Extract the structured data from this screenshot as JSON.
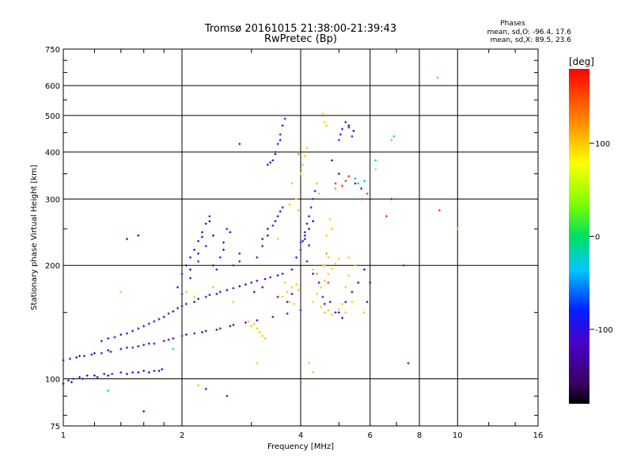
{
  "chart_data": {
    "type": "scatter",
    "title": "Tromsø 20161015 21:38:00-21:39:43",
    "subtitle": "RwPretec (Bp)",
    "xlabel": "Frequency [MHz]",
    "ylabel": "Stationary phase Virtual Height [km]",
    "x_scale": "log",
    "y_scale": "log",
    "xlim": [
      1,
      16
    ],
    "ylim": [
      75,
      750
    ],
    "x_ticks": [
      1,
      2,
      4,
      6,
      8,
      10,
      16
    ],
    "x_gridlines": [
      2,
      4,
      6,
      8,
      10
    ],
    "y_ticks": [
      75,
      100,
      200,
      300,
      400,
      500,
      600,
      750
    ],
    "y_gridlines": [
      100,
      200,
      300,
      400,
      500,
      600
    ],
    "grid": true,
    "phases_box": {
      "title": "Phases",
      "line_o": "mean, sd,O: -96.4, 17.6",
      "line_x": "mean, sd,X:  89.5, 23.6"
    },
    "colorbar": {
      "title": "[deg]",
      "range": [
        -180,
        180
      ],
      "ticks": [
        {
          "value": 100,
          "label": "100"
        },
        {
          "value": 0,
          "label": "0"
        },
        {
          "value": -100,
          "label": "-100"
        }
      ]
    },
    "series": [
      {
        "phase_deg": -100,
        "points": [
          [
            1.0,
            97
          ],
          [
            1.03,
            99
          ],
          [
            1.06,
            100
          ],
          [
            1.1,
            101
          ],
          [
            1.15,
            102
          ],
          [
            1.2,
            102
          ],
          [
            1.27,
            103
          ],
          [
            1.33,
            103
          ],
          [
            1.4,
            104
          ],
          [
            1.5,
            104
          ],
          [
            1.6,
            105
          ],
          [
            1.7,
            105
          ],
          [
            1.78,
            106
          ],
          [
            1.0,
            112
          ],
          [
            1.04,
            113
          ],
          [
            1.08,
            114
          ],
          [
            1.13,
            115
          ],
          [
            1.18,
            116
          ],
          [
            1.25,
            117
          ],
          [
            1.32,
            118
          ],
          [
            1.4,
            120
          ],
          [
            1.5,
            121
          ],
          [
            1.6,
            123
          ],
          [
            1.7,
            124
          ],
          [
            1.8,
            126
          ],
          [
            1.9,
            128
          ],
          [
            2.0,
            130
          ],
          [
            2.15,
            132
          ],
          [
            2.3,
            134
          ],
          [
            2.5,
            136
          ],
          [
            2.7,
            139
          ],
          [
            2.9,
            141
          ],
          [
            3.1,
            143
          ],
          [
            3.4,
            146
          ],
          [
            3.7,
            149
          ],
          [
            4.0,
            152
          ],
          [
            1.25,
            126
          ],
          [
            1.35,
            129
          ],
          [
            1.45,
            132
          ],
          [
            1.55,
            136
          ],
          [
            1.65,
            140
          ],
          [
            1.75,
            144
          ],
          [
            1.85,
            149
          ],
          [
            1.95,
            154
          ],
          [
            2.05,
            158
          ],
          [
            2.2,
            163
          ],
          [
            2.35,
            167
          ],
          [
            2.5,
            170
          ],
          [
            2.7,
            174
          ],
          [
            2.9,
            178
          ],
          [
            3.1,
            182
          ],
          [
            3.35,
            186
          ],
          [
            3.6,
            190
          ],
          [
            2.0,
            190
          ],
          [
            2.05,
            200
          ],
          [
            2.1,
            210
          ],
          [
            2.15,
            220
          ],
          [
            2.2,
            232
          ],
          [
            2.25,
            245
          ],
          [
            2.3,
            258
          ],
          [
            2.35,
            270
          ],
          [
            1.95,
            175
          ],
          [
            2.0,
            168
          ],
          [
            2.1,
            185
          ],
          [
            2.2,
            205
          ],
          [
            2.3,
            225
          ],
          [
            2.4,
            240
          ],
          [
            2.45,
            195
          ],
          [
            2.5,
            210
          ],
          [
            2.55,
            230
          ],
          [
            2.6,
            250
          ],
          [
            2.7,
            200
          ],
          [
            2.8,
            215
          ],
          [
            3.3,
            240
          ],
          [
            3.4,
            255
          ],
          [
            3.5,
            270
          ],
          [
            3.6,
            285
          ],
          [
            3.2,
            225
          ],
          [
            3.1,
            210
          ],
          [
            3.4,
            380
          ],
          [
            3.45,
            400
          ],
          [
            3.5,
            420
          ],
          [
            3.55,
            445
          ],
          [
            3.6,
            470
          ],
          [
            3.65,
            490
          ],
          [
            3.3,
            370
          ],
          [
            3.9,
            210
          ],
          [
            4.0,
            220
          ],
          [
            4.05,
            232
          ],
          [
            4.1,
            245
          ],
          [
            4.15,
            258
          ],
          [
            4.2,
            270
          ],
          [
            4.25,
            285
          ],
          [
            4.3,
            300
          ],
          [
            4.35,
            315
          ],
          [
            4.0,
            230
          ],
          [
            4.1,
            240
          ],
          [
            4.2,
            226
          ],
          [
            5.0,
            430
          ],
          [
            5.05,
            445
          ],
          [
            5.1,
            460
          ],
          [
            5.2,
            480
          ],
          [
            5.3,
            465
          ],
          [
            5.4,
            440
          ],
          [
            4.8,
            380
          ],
          [
            5.0,
            350
          ],
          [
            5.5,
            330
          ],
          [
            5.7,
            320
          ],
          [
            4.9,
            150
          ],
          [
            5.1,
            145
          ],
          [
            4.6,
            158
          ],
          [
            6.8,
            300
          ],
          [
            7.3,
            200
          ],
          [
            7.5,
            110
          ],
          [
            1.6,
            82
          ],
          [
            2.3,
            94
          ],
          [
            2.6,
            90
          ],
          [
            1.45,
            235
          ],
          [
            1.55,
            240
          ],
          [
            2.8,
            420
          ]
        ]
      },
      {
        "phase_deg": -140,
        "points": [
          [
            1.05,
            98
          ],
          [
            1.12,
            100
          ],
          [
            1.22,
            101
          ],
          [
            1.3,
            102
          ],
          [
            1.45,
            103
          ],
          [
            1.55,
            104
          ],
          [
            1.65,
            104
          ],
          [
            1.75,
            105
          ],
          [
            1.1,
            115
          ],
          [
            1.2,
            117
          ],
          [
            1.3,
            119
          ],
          [
            1.45,
            121
          ],
          [
            1.55,
            122
          ],
          [
            1.65,
            124
          ],
          [
            1.85,
            127
          ],
          [
            2.05,
            131
          ],
          [
            2.25,
            133
          ],
          [
            2.45,
            135
          ],
          [
            2.65,
            138
          ],
          [
            1.3,
            128
          ],
          [
            1.4,
            131
          ],
          [
            1.5,
            134
          ],
          [
            1.6,
            138
          ],
          [
            1.7,
            142
          ],
          [
            1.8,
            146
          ],
          [
            1.9,
            151
          ],
          [
            2.0,
            156
          ],
          [
            2.15,
            160
          ],
          [
            2.3,
            165
          ],
          [
            2.45,
            168
          ],
          [
            2.6,
            172
          ],
          [
            2.8,
            176
          ],
          [
            3.0,
            180
          ],
          [
            3.25,
            184
          ],
          [
            3.5,
            188
          ],
          [
            3.8,
            195
          ],
          [
            2.1,
            195
          ],
          [
            2.2,
            215
          ],
          [
            2.25,
            238
          ],
          [
            2.35,
            262
          ],
          [
            2.4,
            200
          ],
          [
            2.55,
            220
          ],
          [
            2.65,
            245
          ],
          [
            2.8,
            205
          ],
          [
            3.05,
            170
          ],
          [
            3.2,
            175
          ],
          [
            3.5,
            165
          ],
          [
            3.7,
            160
          ],
          [
            3.8,
            168
          ],
          [
            3.3,
            250
          ],
          [
            3.45,
            262
          ],
          [
            3.55,
            278
          ],
          [
            3.2,
            235
          ],
          [
            3.35,
            375
          ],
          [
            3.45,
            395
          ],
          [
            3.55,
            430
          ],
          [
            4.1,
            235
          ],
          [
            4.2,
            250
          ],
          [
            4.3,
            262
          ],
          [
            4.15,
            205
          ],
          [
            4.3,
            190
          ],
          [
            4.45,
            180
          ],
          [
            4.55,
            165
          ],
          [
            4.75,
            160
          ],
          [
            5.0,
            150
          ],
          [
            5.2,
            160
          ],
          [
            5.4,
            170
          ],
          [
            5.6,
            180
          ],
          [
            5.8,
            195
          ],
          [
            6.0,
            180
          ],
          [
            5.9,
            160
          ],
          [
            5.3,
            470
          ],
          [
            5.45,
            455
          ]
        ]
      },
      {
        "phase_deg": 100,
        "points": [
          [
            3.0,
            138
          ],
          [
            3.1,
            136
          ],
          [
            3.15,
            133
          ],
          [
            3.2,
            130
          ],
          [
            3.25,
            128
          ],
          [
            3.05,
            140
          ],
          [
            2.95,
            142
          ],
          [
            3.6,
            165
          ],
          [
            3.7,
            170
          ],
          [
            3.8,
            175
          ],
          [
            3.9,
            178
          ],
          [
            3.65,
            180
          ],
          [
            3.75,
            160
          ],
          [
            3.85,
            158
          ],
          [
            3.95,
            172
          ],
          [
            4.0,
            350
          ],
          [
            4.05,
            370
          ],
          [
            4.1,
            390
          ],
          [
            4.15,
            410
          ],
          [
            3.8,
            330
          ],
          [
            3.9,
            300
          ],
          [
            3.95,
            280
          ],
          [
            3.75,
            290
          ],
          [
            4.5,
            175
          ],
          [
            4.6,
            182
          ],
          [
            4.7,
            190
          ],
          [
            4.8,
            196
          ],
          [
            4.9,
            202
          ],
          [
            5.0,
            208
          ],
          [
            4.4,
            168
          ],
          [
            4.3,
            160
          ],
          [
            4.6,
            200
          ],
          [
            4.7,
            210
          ],
          [
            4.8,
            250
          ],
          [
            4.75,
            265
          ],
          [
            4.65,
            240
          ],
          [
            4.5,
            155
          ],
          [
            4.6,
            150
          ],
          [
            4.7,
            152
          ],
          [
            4.8,
            148
          ],
          [
            5.0,
            153
          ],
          [
            5.1,
            158
          ],
          [
            4.6,
            480
          ],
          [
            4.65,
            470
          ],
          [
            4.55,
            505
          ],
          [
            4.4,
            330
          ],
          [
            4.45,
            310
          ],
          [
            5.2,
            150
          ],
          [
            5.4,
            160
          ],
          [
            5.8,
            150
          ],
          [
            4.2,
            110
          ],
          [
            4.3,
            104
          ],
          [
            3.1,
            110
          ],
          [
            2.2,
            96
          ],
          [
            5.5,
            200
          ],
          [
            5.3,
            210
          ],
          [
            10.0,
            250
          ]
        ]
      },
      {
        "phase_deg": 40,
        "points": [
          [
            2.05,
            170
          ],
          [
            2.15,
            165
          ],
          [
            2.4,
            175
          ],
          [
            2.7,
            160
          ],
          [
            4.3,
            195
          ],
          [
            5.3,
            188
          ],
          [
            5.2,
            175
          ],
          [
            6.2,
            360
          ],
          [
            1.4,
            170
          ],
          [
            3.5,
            235
          ]
        ]
      },
      {
        "phase_deg": -10,
        "points": [
          [
            1.3,
            93
          ],
          [
            5.6,
            330
          ],
          [
            5.8,
            335
          ],
          [
            5.5,
            340
          ],
          [
            6.2,
            380
          ],
          [
            1.9,
            120
          ],
          [
            6.9,
            440
          ]
        ]
      },
      {
        "phase_deg": 160,
        "points": [
          [
            4.9,
            330
          ],
          [
            5.1,
            325
          ],
          [
            5.3,
            345
          ],
          [
            5.2,
            335
          ],
          [
            5.9,
            310
          ],
          [
            6.6,
            270
          ],
          [
            9.0,
            280
          ],
          [
            4.7,
            180
          ],
          [
            5.7,
            300
          ]
        ]
      },
      {
        "phase_deg": 120,
        "points": [
          [
            4.55,
            200
          ],
          [
            4.65,
            215
          ],
          [
            4.4,
            190
          ],
          [
            8.9,
            630
          ],
          [
            6.8,
            430
          ],
          [
            4.9,
            320
          ],
          [
            3.95,
            395
          ]
        ]
      }
    ]
  }
}
